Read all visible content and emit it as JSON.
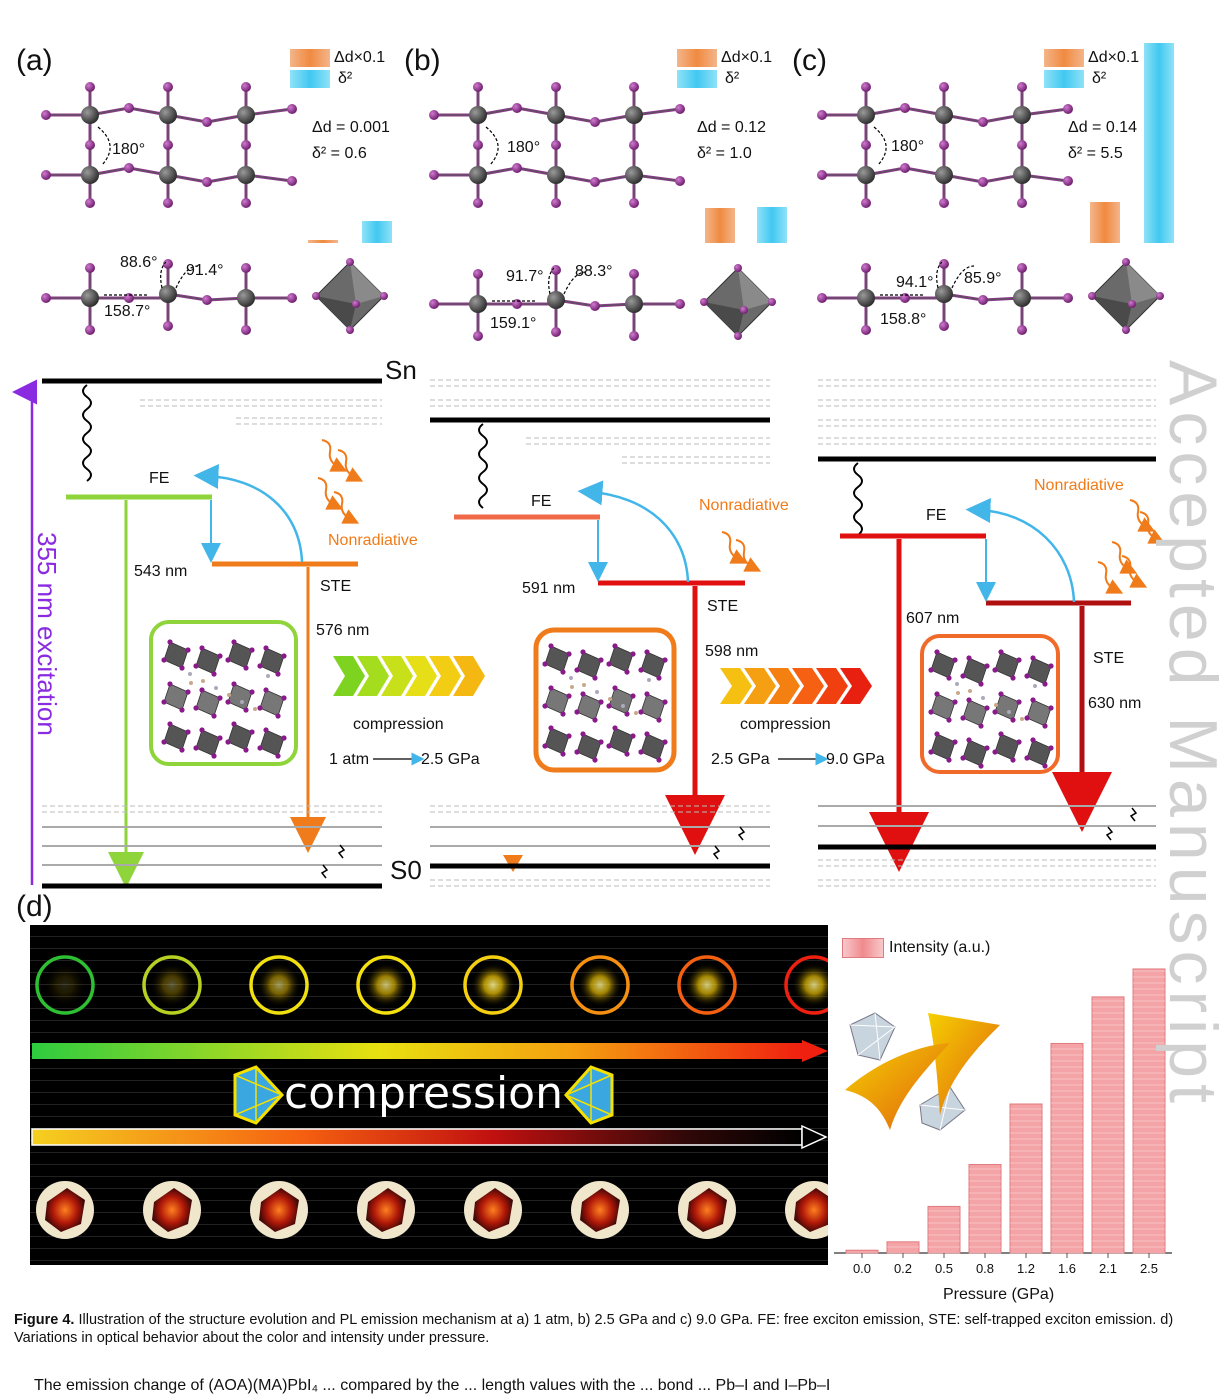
{
  "panels": {
    "a": {
      "label": "(a)",
      "delta_d": "Δd = 0.001",
      "delta_sq": "δ² = 0.6",
      "d_bar": 0.001,
      "s_bar": 0.6,
      "angle1": "180°",
      "angle2": "88.6°",
      "angle3": "91.4°",
      "angle4": "158.7°"
    },
    "b": {
      "label": "(b)",
      "delta_d": "Δd = 0.12",
      "delta_sq": "δ² = 1.0",
      "d_bar": 0.12,
      "s_bar": 1.0,
      "angle1": "180°",
      "angle2": "91.7°",
      "angle3": "88.3°",
      "angle4": "159.1°"
    },
    "c": {
      "label": "(c)",
      "delta_d": "Δd = 0.14",
      "delta_sq": "δ² = 5.5",
      "d_bar": 0.14,
      "s_bar": 5.5,
      "angle1": "180°",
      "angle2": "94.1°",
      "angle3": "85.9°",
      "angle4": "158.8°"
    }
  },
  "legend": {
    "d_label": "Δd×0.1",
    "s_label": "δ²",
    "d_color": "#f0a064",
    "s_color": "#41c8f0"
  },
  "diagram": {
    "sn": "Sn",
    "s0": "S0",
    "excitation": "355 nm excitation",
    "fe": "FE",
    "ste": "STE",
    "nonrad": "Nonradiative",
    "a_fe_nm": "543 nm",
    "a_ste_nm": "576 nm",
    "b_fe_nm": "591 nm",
    "b_ste_nm": "598 nm",
    "c_fe_nm": "607 nm",
    "c_ste_nm": "630 nm",
    "compression": "compression",
    "ab_from": "1 atm",
    "ab_to": "2.5 GPa",
    "bc_from": "2.5 GPa",
    "bc_to": "9.0 GPa"
  },
  "panel_d": {
    "label": "(d)",
    "compression_word": "compression"
  },
  "chart_data": {
    "type": "bar",
    "categories": [
      "0.0",
      "0.2",
      "0.5",
      "0.8",
      "1.2",
      "1.6",
      "2.1",
      "2.5"
    ],
    "values": [
      0.3,
      1.2,
      5.0,
      9.5,
      16.0,
      22.5,
      27.5,
      30.5
    ],
    "legend": "Intensity (a.u.)",
    "xlabel": "Pressure (GPa)",
    "ylim": [
      0,
      32
    ],
    "bar_color": "#f4a3a6"
  },
  "caption": {
    "label": "Figure 4.",
    "text": " Illustration of the structure evolution and PL emission mechanism at a) 1 atm, b) 2.5 GPa and c) 9.0 GPa. FE: free exciton emission, STE: self-trapped exciton emission. d) Variations in optical behavior about the color and intensity under pressure."
  },
  "body_text": "The emission change of (AOA)(MA)PbI₄ ... compared by the ... length values with the ... bond ... Pb–I and I–Pb–I",
  "watermark": "Accepted Manuscript"
}
